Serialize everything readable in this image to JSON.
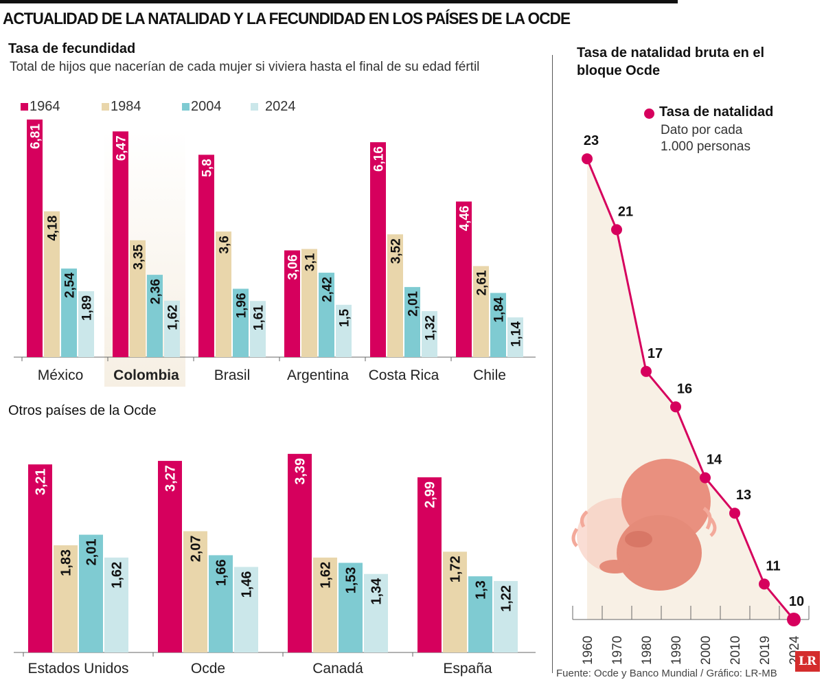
{
  "title": "ACTUALIDAD DE LA NATALIDAD Y LA FECUNDIDAD EN LOS PAÍSES DE LA OCDE",
  "colors": {
    "1964": "#d6005d",
    "1984": "#e9d6ab",
    "2004": "#7fcbd2",
    "2024": "#cbe7ea",
    "highlight": "#f6efe3",
    "line": "#d6005d",
    "area": "#f3e6d3"
  },
  "chart_data": [
    {
      "type": "bar",
      "title": "Tasa de fecundidad",
      "subtitle": "Total de hijos que nacerían de cada mujer si viviera hasta el final de su edad fértil",
      "legend": [
        "1964",
        "1984",
        "2004",
        "2024"
      ],
      "categories": [
        "México",
        "Colombia",
        "Brasil",
        "Argentina",
        "Costa Rica",
        "Chile"
      ],
      "highlighted": "Colombia",
      "series": [
        {
          "name": "1964",
          "values": [
            6.81,
            6.47,
            5.8,
            3.06,
            6.16,
            4.46
          ],
          "labels": [
            "6,81",
            "6,47",
            "5,8",
            "3,06",
            "6,16",
            "4,46"
          ]
        },
        {
          "name": "1984",
          "values": [
            4.18,
            3.35,
            3.6,
            3.1,
            3.52,
            2.61
          ],
          "labels": [
            "4,18",
            "3,35",
            "3,6",
            "3,1",
            "3,52",
            "2,61"
          ]
        },
        {
          "name": "2004",
          "values": [
            2.54,
            2.36,
            1.96,
            2.42,
            2.01,
            1.84
          ],
          "labels": [
            "2,54",
            "2,36",
            "1,96",
            "2,42",
            "2,01",
            "1,84"
          ]
        },
        {
          "name": "2024",
          "values": [
            1.89,
            1.62,
            1.61,
            1.5,
            1.32,
            1.14
          ],
          "labels": [
            "1,89",
            "1,62",
            "1,61",
            "1,5",
            "1,32",
            "1,14"
          ]
        }
      ]
    },
    {
      "type": "bar",
      "title": "Otros países de la Ocde",
      "categories": [
        "Estados Unidos",
        "Ocde",
        "Canadá",
        "España"
      ],
      "series": [
        {
          "name": "1964",
          "values": [
            3.21,
            3.27,
            3.39,
            2.99
          ],
          "labels": [
            "3,21",
            "3,27",
            "3,39",
            "2,99"
          ]
        },
        {
          "name": "1984",
          "values": [
            1.83,
            2.07,
            1.62,
            1.72
          ],
          "labels": [
            "1,83",
            "2,07",
            "1,62",
            "1,72"
          ]
        },
        {
          "name": "2004",
          "values": [
            2.01,
            1.66,
            1.53,
            1.3
          ],
          "labels": [
            "2,01",
            "1,66",
            "1,53",
            "1,3"
          ]
        },
        {
          "name": "2024",
          "values": [
            1.62,
            1.46,
            1.34,
            1.22
          ],
          "labels": [
            "1,62",
            "1,46",
            "1,34",
            "1,22"
          ]
        }
      ]
    },
    {
      "type": "line",
      "title": "Tasa de natalidad bruta en el bloque Ocde",
      "legend": {
        "name": "Tasa de natalidad",
        "note": "Dato por cada 1.000 personas"
      },
      "x": [
        "1960",
        "1970",
        "1980",
        "1990",
        "2000",
        "2010",
        "2019",
        "2024"
      ],
      "y": [
        23,
        21,
        17,
        16,
        14,
        13,
        11,
        10
      ]
    }
  ],
  "source": "Fuente: Ocde y Banco Mundial / Gráfico: LR-MB",
  "logo": "LR"
}
